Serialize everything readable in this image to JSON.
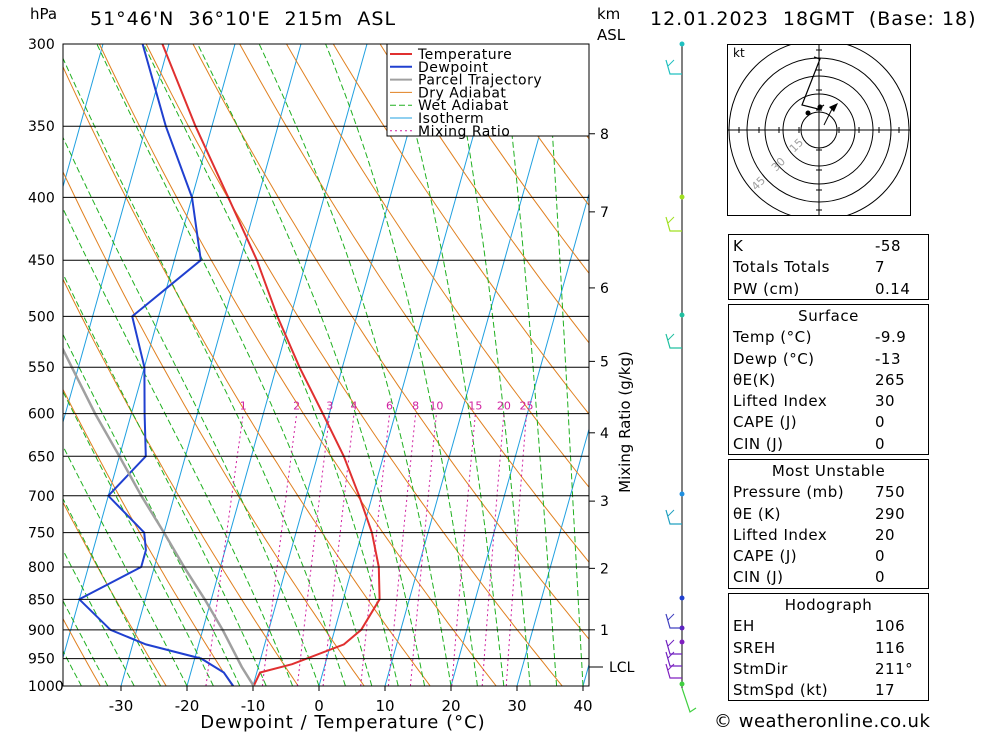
{
  "header": {
    "hpa_unit": "hPa",
    "location": "51°46'N  36°10'E  215m  ASL",
    "km_unit": "km",
    "asl_unit": "ASL",
    "datetime": "12.01.2023  18GMT  (Base: 18)"
  },
  "colors": {
    "temperature": "#e03030",
    "dewpoint": "#2040d0",
    "parcel": "#a0a0a0",
    "dry_adiabat": "#e08020",
    "wet_adiabat": "#20b020",
    "isotherm": "#20a0e0",
    "mixing_ratio": "#d020a0"
  },
  "legend": [
    "Temperature",
    "Dewpoint",
    "Parcel Trajectory",
    "Dry Adiabat",
    "Wet Adiabat",
    "Isotherm",
    "Mixing Ratio"
  ],
  "mixing_ratio_labels": [
    "1",
    "2",
    "3",
    "4",
    "6",
    "8",
    "10",
    "15",
    "20",
    "25"
  ],
  "mixing_ratio_axis": "Mixing Ratio (g/kg)",
  "lcl_label": "LCL",
  "chart_data": {
    "type": "line",
    "title": "",
    "xlabel": "Dewpoint / Temperature (°C)",
    "ylabel": "hPa",
    "x_ticks": [
      -30,
      -20,
      -10,
      0,
      10,
      20,
      30,
      40
    ],
    "pressure_levels": [
      300,
      350,
      400,
      450,
      500,
      550,
      600,
      650,
      700,
      750,
      800,
      850,
      900,
      950,
      1000
    ],
    "km_ticks": [
      {
        "km": 1,
        "p": 900
      },
      {
        "km": 2,
        "p": 802
      },
      {
        "km": 3,
        "p": 707
      },
      {
        "km": 4,
        "p": 622
      },
      {
        "km": 5,
        "p": 544
      },
      {
        "km": 6,
        "p": 474
      },
      {
        "km": 7,
        "p": 411
      },
      {
        "km": 8,
        "p": 355
      }
    ],
    "lcl_pressure": 965,
    "series": [
      {
        "name": "Temperature",
        "points": [
          [
            1000,
            -9.9
          ],
          [
            975,
            -9.5
          ],
          [
            960,
            -5
          ],
          [
            925,
            2
          ],
          [
            900,
            4
          ],
          [
            850,
            5.5
          ],
          [
            800,
            4
          ],
          [
            750,
            1.5
          ],
          [
            700,
            -2
          ],
          [
            650,
            -6
          ],
          [
            600,
            -11
          ],
          [
            550,
            -16.5
          ],
          [
            500,
            -22
          ],
          [
            450,
            -27.5
          ],
          [
            400,
            -34.5
          ],
          [
            350,
            -42.5
          ],
          [
            300,
            -51
          ]
        ]
      },
      {
        "name": "Dewpoint",
        "points": [
          [
            1000,
            -13
          ],
          [
            975,
            -15
          ],
          [
            950,
            -19
          ],
          [
            925,
            -28
          ],
          [
            900,
            -34
          ],
          [
            850,
            -40
          ],
          [
            800,
            -32
          ],
          [
            775,
            -32
          ],
          [
            750,
            -33
          ],
          [
            700,
            -40
          ],
          [
            650,
            -36
          ],
          [
            600,
            -38
          ],
          [
            550,
            -40
          ],
          [
            500,
            -44
          ],
          [
            450,
            -36
          ],
          [
            400,
            -40
          ],
          [
            350,
            -47
          ],
          [
            300,
            -54
          ]
        ]
      },
      {
        "name": "Parcel Trajectory",
        "points": [
          [
            1000,
            -9.9
          ],
          [
            965,
            -12.5
          ],
          [
            900,
            -17
          ],
          [
            850,
            -21
          ],
          [
            800,
            -25.5
          ],
          [
            750,
            -30
          ],
          [
            700,
            -35
          ],
          [
            650,
            -40
          ],
          [
            600,
            -45.5
          ],
          [
            550,
            -51
          ],
          [
            500,
            -57
          ],
          [
            450,
            -63
          ],
          [
            400,
            -70
          ]
        ]
      }
    ]
  },
  "hodograph": {
    "unit": "kt",
    "ring_labels": [
      "15",
      "30",
      "45"
    ]
  },
  "indices": [
    {
      "label": "K",
      "value": "-58"
    },
    {
      "label": "Totals Totals",
      "value": "7"
    },
    {
      "label": "PW (cm)",
      "value": "0.14"
    }
  ],
  "surface": {
    "title": "Surface",
    "rows": [
      {
        "label": "Temp (°C)",
        "value": "-9.9"
      },
      {
        "label": "Dewp (°C)",
        "value": "-13"
      },
      {
        "label": "θE(K)",
        "value": "265"
      },
      {
        "label": "Lifted Index",
        "value": "30"
      },
      {
        "label": "CAPE (J)",
        "value": "0"
      },
      {
        "label": "CIN (J)",
        "value": "0"
      }
    ]
  },
  "most_unstable": {
    "title": "Most Unstable",
    "rows": [
      {
        "label": "Pressure (mb)",
        "value": "750"
      },
      {
        "label": "θE (K)",
        "value": "290"
      },
      {
        "label": "Lifted Index",
        "value": "20"
      },
      {
        "label": "CAPE (J)",
        "value": "0"
      },
      {
        "label": "CIN (J)",
        "value": "0"
      }
    ]
  },
  "hodo_stats": {
    "title": "Hodograph",
    "rows": [
      {
        "label": "EH",
        "value": "106"
      },
      {
        "label": "SREH",
        "value": "116"
      },
      {
        "label": "StmDir",
        "value": "211°"
      },
      {
        "label": "StmSpd (kt)",
        "value": "17"
      }
    ]
  },
  "footer": "© weatheronline.co.uk"
}
